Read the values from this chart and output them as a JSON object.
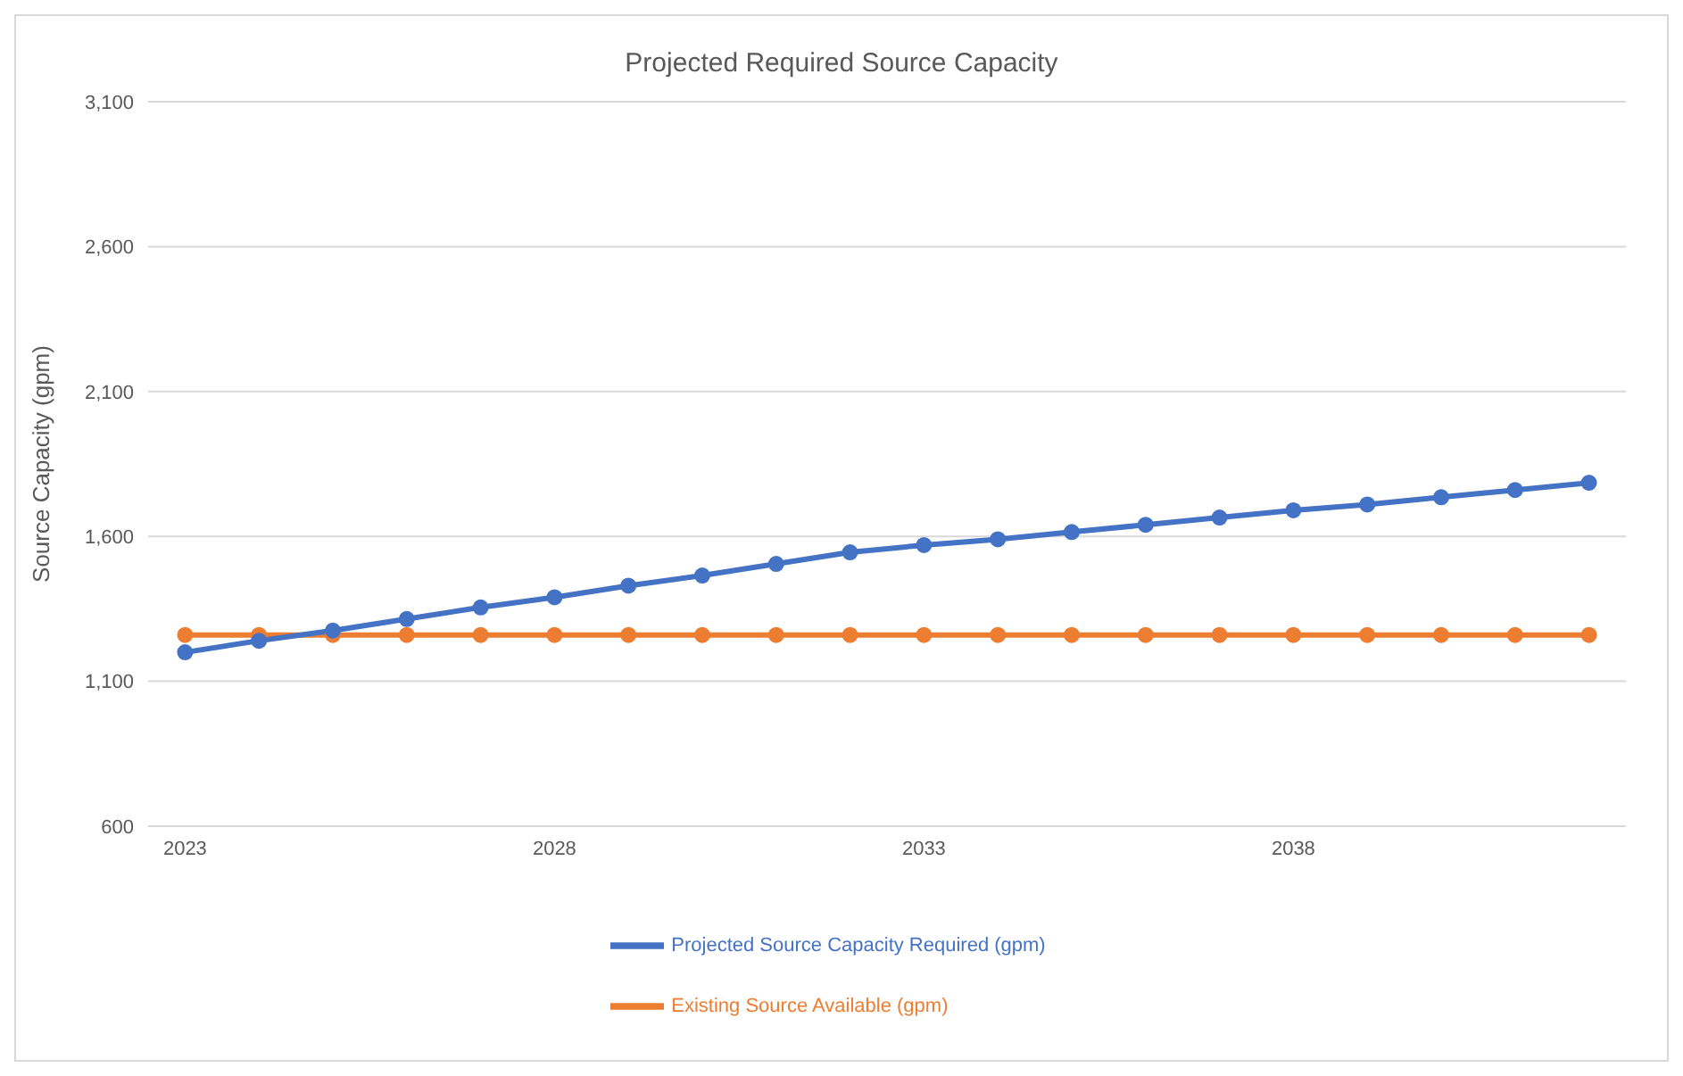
{
  "chart_data": {
    "type": "line",
    "title": "Projected Required Source Capacity",
    "ylabel": "Source Capacity (gpm)",
    "x": [
      2023,
      2024,
      2025,
      2026,
      2027,
      2028,
      2029,
      2030,
      2031,
      2032,
      2033,
      2034,
      2035,
      2036,
      2037,
      2038,
      2039,
      2040,
      2041,
      2042
    ],
    "series": [
      {
        "name": "Projected Source Capacity Required (gpm)",
        "color": "#4472c4",
        "values": [
          1200,
          1240,
          1275,
          1315,
          1355,
          1390,
          1430,
          1465,
          1505,
          1545,
          1570,
          1590,
          1615,
          1640,
          1665,
          1690,
          1710,
          1735,
          1760,
          1785
        ]
      },
      {
        "name": "Existing Source Available (gpm)",
        "color": "#ed7d31",
        "values": [
          1260,
          1260,
          1260,
          1260,
          1260,
          1260,
          1260,
          1260,
          1260,
          1260,
          1260,
          1260,
          1260,
          1260,
          1260,
          1260,
          1260,
          1260,
          1260,
          1260
        ]
      }
    ],
    "xlim": [
      2022.5,
      2042.5
    ],
    "xticks": [
      2023,
      2028,
      2033,
      2038
    ],
    "ylim": [
      600,
      3100
    ],
    "yticks": [
      {
        "value": 600,
        "label": "600"
      },
      {
        "value": 1100,
        "label": "1,100"
      },
      {
        "value": 1600,
        "label": "1,600"
      },
      {
        "value": 2100,
        "label": "2,100"
      },
      {
        "value": 2600,
        "label": "2,600"
      },
      {
        "value": 3100,
        "label": "3,100"
      }
    ],
    "grid": "y",
    "legend": "bottom",
    "marker": "circle",
    "line_style": "solid"
  }
}
